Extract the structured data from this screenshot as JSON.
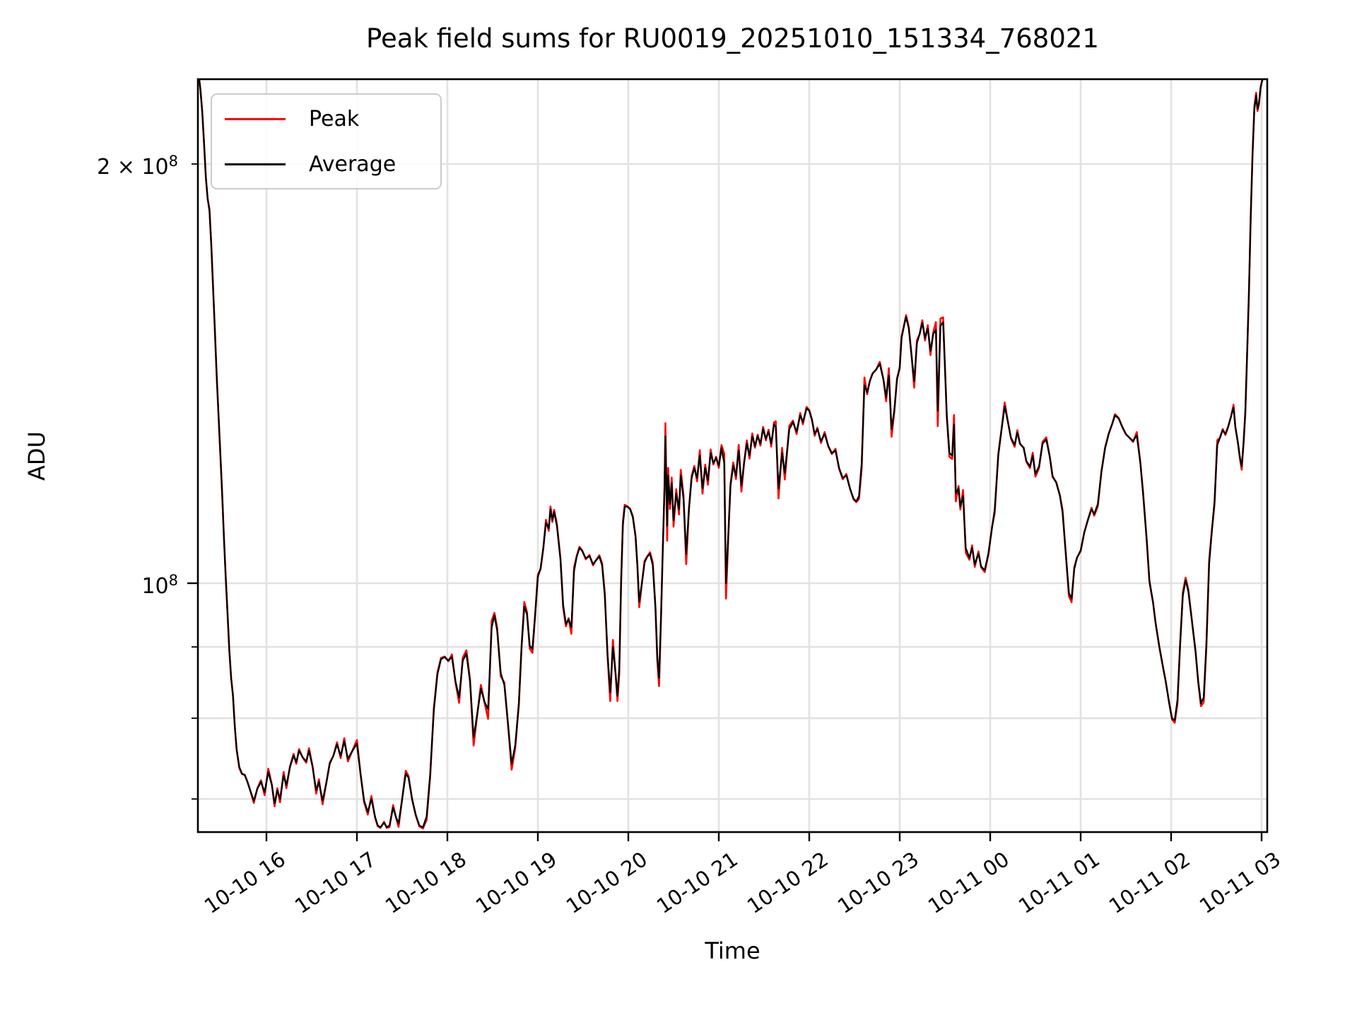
{
  "figure": {
    "kind": "matplotlib line plot",
    "background": "#ffffff"
  },
  "chart_data": {
    "type": "line",
    "title": "Peak field sums for RU0019_20251010_151334_768021",
    "xlabel": "Time",
    "ylabel": "ADU",
    "y_scale": "log",
    "grid": true,
    "colors": {
      "peak": "#ff0000",
      "average": "#000000",
      "grid": "#e2e2e2",
      "spine": "#000000"
    },
    "x_axis": {
      "unit": "hours (24h+ = next day 10-11)",
      "range_hours": [
        15.23,
        27.06
      ],
      "ticks": [
        {
          "t": 16,
          "label": "10-10 16"
        },
        {
          "t": 17,
          "label": "10-10 17"
        },
        {
          "t": 18,
          "label": "10-10 18"
        },
        {
          "t": 19,
          "label": "10-10 19"
        },
        {
          "t": 20,
          "label": "10-10 20"
        },
        {
          "t": 21,
          "label": "10-10 21"
        },
        {
          "t": 22,
          "label": "10-10 22"
        },
        {
          "t": 23,
          "label": "10-10 23"
        },
        {
          "t": 24,
          "label": "10-11 00"
        },
        {
          "t": 25,
          "label": "10-11 01"
        },
        {
          "t": 26,
          "label": "10-11 02"
        },
        {
          "t": 27,
          "label": "10-11 03"
        }
      ]
    },
    "y_axis": {
      "unit": "ADU",
      "range": [
        66300000,
        230400000
      ],
      "major_ticks": [
        {
          "value_e7": 10,
          "mantissa": "10",
          "exp": "8"
        }
      ],
      "labeled_minor_ticks": [
        {
          "value_e7": 20,
          "mantissa": "2 × 10",
          "exp": "8"
        }
      ],
      "minor_ticks_e7": [
        7,
        8,
        9
      ]
    },
    "legend": {
      "entries": [
        {
          "label": "Peak",
          "color": "#ff0000"
        },
        {
          "label": "Average",
          "color": "#000000"
        }
      ]
    },
    "series_note": "Peak (red) nearly coincides with Average (black); red fringes appear only at sharp spikes/dips.",
    "values_scale": 10000000,
    "average_points_e7": [
      [
        15.25,
        23.2
      ],
      [
        15.27,
        22.6
      ],
      [
        15.29,
        21.8
      ],
      [
        15.31,
        20.7
      ],
      [
        15.33,
        19.6
      ],
      [
        15.35,
        18.9
      ],
      [
        15.37,
        18.5
      ],
      [
        15.39,
        17.5
      ],
      [
        15.41,
        16.3
      ],
      [
        15.43,
        15.2
      ],
      [
        15.45,
        14.1
      ],
      [
        15.47,
        13.2
      ],
      [
        15.49,
        12.4
      ],
      [
        15.51,
        11.6
      ],
      [
        15.53,
        10.8
      ],
      [
        15.55,
        10.1
      ],
      [
        15.57,
        9.5
      ],
      [
        15.59,
        8.95
      ],
      [
        15.61,
        8.55
      ],
      [
        15.63,
        8.3
      ],
      [
        15.65,
        7.9
      ],
      [
        15.67,
        7.6
      ],
      [
        15.7,
        7.38
      ],
      [
        15.73,
        7.3
      ],
      [
        15.76,
        7.28
      ],
      [
        15.79,
        7.2
      ],
      [
        15.82,
        7.1
      ],
      [
        15.86,
        6.98
      ],
      [
        15.9,
        7.12
      ],
      [
        15.94,
        7.2
      ],
      [
        15.98,
        7.08
      ],
      [
        16.02,
        7.32
      ],
      [
        16.06,
        7.16
      ],
      [
        16.09,
        6.95
      ],
      [
        16.12,
        7.1
      ],
      [
        16.15,
        7.0
      ],
      [
        16.19,
        7.28
      ],
      [
        16.22,
        7.16
      ],
      [
        16.26,
        7.38
      ],
      [
        16.3,
        7.52
      ],
      [
        16.33,
        7.44
      ],
      [
        16.36,
        7.58
      ],
      [
        16.4,
        7.5
      ],
      [
        16.44,
        7.45
      ],
      [
        16.47,
        7.58
      ],
      [
        16.51,
        7.38
      ],
      [
        16.55,
        7.1
      ],
      [
        16.58,
        7.2
      ],
      [
        16.62,
        6.98
      ],
      [
        16.66,
        7.18
      ],
      [
        16.7,
        7.42
      ],
      [
        16.74,
        7.52
      ],
      [
        16.78,
        7.66
      ],
      [
        16.82,
        7.52
      ],
      [
        16.86,
        7.7
      ],
      [
        16.9,
        7.48
      ],
      [
        16.95,
        7.58
      ],
      [
        17.0,
        7.67
      ],
      [
        17.04,
        7.3
      ],
      [
        17.08,
        6.98
      ],
      [
        17.12,
        6.85
      ],
      [
        17.16,
        7.0
      ],
      [
        17.2,
        6.8
      ],
      [
        17.23,
        6.7
      ],
      [
        17.26,
        6.68
      ],
      [
        17.3,
        6.73
      ],
      [
        17.33,
        6.68
      ],
      [
        17.36,
        6.7
      ],
      [
        17.4,
        6.9
      ],
      [
        17.43,
        6.8
      ],
      [
        17.46,
        6.72
      ],
      [
        17.5,
        7.0
      ],
      [
        17.54,
        7.3
      ],
      [
        17.57,
        7.25
      ],
      [
        17.61,
        7.0
      ],
      [
        17.65,
        6.82
      ],
      [
        17.69,
        6.7
      ],
      [
        17.73,
        6.68
      ],
      [
        17.77,
        6.8
      ],
      [
        17.81,
        7.3
      ],
      [
        17.85,
        8.1
      ],
      [
        17.89,
        8.6
      ],
      [
        17.93,
        8.82
      ],
      [
        17.97,
        8.85
      ],
      [
        18.01,
        8.8
      ],
      [
        18.05,
        8.85
      ],
      [
        18.09,
        8.5
      ],
      [
        18.13,
        8.28
      ],
      [
        18.17,
        8.8
      ],
      [
        18.21,
        8.9
      ],
      [
        18.25,
        8.5
      ],
      [
        18.29,
        7.75
      ],
      [
        18.33,
        8.05
      ],
      [
        18.37,
        8.4
      ],
      [
        18.41,
        8.22
      ],
      [
        18.45,
        8.12
      ],
      [
        18.49,
        9.3
      ],
      [
        18.52,
        9.48
      ],
      [
        18.55,
        9.25
      ],
      [
        18.59,
        8.62
      ],
      [
        18.63,
        8.45
      ],
      [
        18.67,
        7.92
      ],
      [
        18.71,
        7.42
      ],
      [
        18.75,
        7.65
      ],
      [
        18.79,
        8.2
      ],
      [
        18.82,
        9.0
      ],
      [
        18.85,
        9.62
      ],
      [
        18.88,
        9.5
      ],
      [
        18.91,
        9.02
      ],
      [
        18.94,
        8.97
      ],
      [
        18.97,
        9.5
      ],
      [
        19.0,
        10.1
      ],
      [
        19.03,
        10.25
      ],
      [
        19.06,
        10.6
      ],
      [
        19.09,
        11.05
      ],
      [
        19.12,
        10.95
      ],
      [
        19.14,
        11.3
      ],
      [
        19.16,
        11.1
      ],
      [
        19.18,
        11.25
      ],
      [
        19.21,
        11.0
      ],
      [
        19.25,
        10.4
      ],
      [
        19.28,
        9.65
      ],
      [
        19.31,
        9.35
      ],
      [
        19.34,
        9.42
      ],
      [
        19.37,
        9.3
      ],
      [
        19.4,
        10.2
      ],
      [
        19.43,
        10.45
      ],
      [
        19.46,
        10.6
      ],
      [
        19.49,
        10.55
      ],
      [
        19.53,
        10.42
      ],
      [
        19.57,
        10.46
      ],
      [
        19.61,
        10.32
      ],
      [
        19.64,
        10.38
      ],
      [
        19.68,
        10.45
      ],
      [
        19.71,
        10.3
      ],
      [
        19.74,
        9.8
      ],
      [
        19.77,
        8.9
      ],
      [
        19.8,
        8.35
      ],
      [
        19.83,
        9.0
      ],
      [
        19.86,
        8.6
      ],
      [
        19.88,
        8.3
      ],
      [
        19.9,
        8.7
      ],
      [
        19.92,
        10.0
      ],
      [
        19.94,
        11.0
      ],
      [
        19.96,
        11.35
      ],
      [
        19.99,
        11.35
      ],
      [
        20.02,
        11.3
      ],
      [
        20.05,
        11.15
      ],
      [
        20.08,
        10.8
      ],
      [
        20.1,
        10.3
      ],
      [
        20.12,
        9.7
      ],
      [
        20.15,
        10.0
      ],
      [
        20.18,
        10.35
      ],
      [
        20.21,
        10.45
      ],
      [
        20.24,
        10.5
      ],
      [
        20.27,
        10.3
      ],
      [
        20.3,
        9.6
      ],
      [
        20.32,
        8.85
      ],
      [
        20.34,
        8.55
      ],
      [
        20.36,
        9.4
      ],
      [
        20.38,
        10.5
      ],
      [
        20.4,
        11.7
      ],
      [
        20.41,
        12.75
      ],
      [
        20.43,
        11.0
      ],
      [
        20.44,
        11.95
      ],
      [
        20.46,
        11.4
      ],
      [
        20.48,
        11.8
      ],
      [
        20.5,
        11.1
      ],
      [
        20.53,
        11.6
      ],
      [
        20.56,
        11.3
      ],
      [
        20.58,
        11.95
      ],
      [
        20.61,
        11.5
      ],
      [
        20.64,
        10.5
      ],
      [
        20.67,
        11.3
      ],
      [
        20.7,
        11.9
      ],
      [
        20.73,
        12.1
      ],
      [
        20.76,
        11.9
      ],
      [
        20.79,
        12.35
      ],
      [
        20.82,
        11.7
      ],
      [
        20.85,
        12.1
      ],
      [
        20.88,
        11.85
      ],
      [
        20.91,
        12.4
      ],
      [
        20.94,
        12.2
      ],
      [
        20.97,
        12.3
      ],
      [
        21.0,
        12.15
      ],
      [
        21.03,
        12.5
      ],
      [
        21.06,
        12.2
      ],
      [
        21.08,
        10.0
      ],
      [
        21.11,
        11.0
      ],
      [
        21.13,
        11.75
      ],
      [
        21.16,
        12.15
      ],
      [
        21.19,
        11.95
      ],
      [
        21.22,
        12.45
      ],
      [
        21.25,
        11.75
      ],
      [
        21.28,
        12.2
      ],
      [
        21.31,
        12.6
      ],
      [
        21.34,
        12.35
      ],
      [
        21.37,
        12.75
      ],
      [
        21.4,
        12.55
      ],
      [
        21.43,
        12.75
      ],
      [
        21.46,
        12.6
      ],
      [
        21.49,
        12.9
      ],
      [
        21.52,
        12.7
      ],
      [
        21.55,
        12.85
      ],
      [
        21.58,
        12.6
      ],
      [
        21.61,
        13.0
      ],
      [
        21.63,
        12.95
      ],
      [
        21.66,
        11.7
      ],
      [
        21.7,
        12.4
      ],
      [
        21.73,
        12.0
      ],
      [
        21.78,
        12.9
      ],
      [
        21.82,
        13.05
      ],
      [
        21.86,
        12.85
      ],
      [
        21.9,
        13.2
      ],
      [
        21.93,
        13.05
      ],
      [
        21.97,
        13.35
      ],
      [
        22.0,
        13.3
      ],
      [
        22.03,
        13.1
      ],
      [
        22.06,
        12.8
      ],
      [
        22.09,
        12.9
      ],
      [
        22.13,
        12.65
      ],
      [
        22.17,
        12.8
      ],
      [
        22.21,
        12.55
      ],
      [
        22.25,
        12.4
      ],
      [
        22.29,
        12.45
      ],
      [
        22.33,
        12.1
      ],
      [
        22.37,
        11.9
      ],
      [
        22.41,
        11.95
      ],
      [
        22.45,
        11.7
      ],
      [
        22.49,
        11.5
      ],
      [
        22.52,
        11.45
      ],
      [
        22.55,
        11.55
      ],
      [
        22.58,
        12.2
      ],
      [
        22.61,
        13.87
      ],
      [
        22.64,
        13.71
      ],
      [
        22.67,
        13.97
      ],
      [
        22.7,
        14.14
      ],
      [
        22.74,
        14.24
      ],
      [
        22.78,
        14.37
      ],
      [
        22.82,
        14.0
      ],
      [
        22.85,
        13.6
      ],
      [
        22.88,
        14.1
      ],
      [
        22.91,
        12.9
      ],
      [
        22.94,
        13.3
      ],
      [
        22.97,
        14.0
      ],
      [
        23.0,
        14.3
      ],
      [
        23.02,
        15.0
      ],
      [
        23.05,
        15.33
      ],
      [
        23.07,
        15.53
      ],
      [
        23.1,
        15.24
      ],
      [
        23.13,
        14.6
      ],
      [
        23.16,
        13.97
      ],
      [
        23.19,
        14.87
      ],
      [
        23.22,
        15.1
      ],
      [
        23.25,
        15.38
      ],
      [
        23.28,
        15.0
      ],
      [
        23.31,
        15.24
      ],
      [
        23.34,
        14.68
      ],
      [
        23.37,
        15.1
      ],
      [
        23.4,
        15.2
      ],
      [
        23.42,
        13.3
      ],
      [
        23.45,
        15.3
      ],
      [
        23.48,
        15.4
      ],
      [
        23.5,
        14.3
      ],
      [
        23.52,
        13.2
      ],
      [
        23.55,
        12.4
      ],
      [
        23.58,
        12.35
      ],
      [
        23.6,
        13.0
      ],
      [
        23.62,
        11.6
      ],
      [
        23.65,
        11.7
      ],
      [
        23.67,
        11.35
      ],
      [
        23.7,
        11.55
      ],
      [
        23.73,
        10.6
      ],
      [
        23.77,
        10.43
      ],
      [
        23.8,
        10.6
      ],
      [
        23.83,
        10.32
      ],
      [
        23.87,
        10.5
      ],
      [
        23.9,
        10.28
      ],
      [
        23.94,
        10.22
      ],
      [
        23.98,
        10.5
      ],
      [
        24.02,
        10.96
      ],
      [
        24.05,
        11.3
      ],
      [
        24.09,
        12.35
      ],
      [
        24.13,
        12.95
      ],
      [
        24.16,
        13.4
      ],
      [
        24.2,
        13.02
      ],
      [
        24.23,
        12.72
      ],
      [
        24.27,
        12.57
      ],
      [
        24.3,
        12.83
      ],
      [
        24.33,
        12.6
      ],
      [
        24.37,
        12.5
      ],
      [
        24.4,
        12.24
      ],
      [
        24.44,
        12.13
      ],
      [
        24.47,
        12.35
      ],
      [
        24.5,
        11.98
      ],
      [
        24.54,
        12.13
      ],
      [
        24.58,
        12.6
      ],
      [
        24.62,
        12.68
      ],
      [
        24.66,
        12.31
      ],
      [
        24.69,
        11.94
      ],
      [
        24.73,
        11.81
      ],
      [
        24.77,
        11.56
      ],
      [
        24.8,
        11.24
      ],
      [
        24.84,
        10.43
      ],
      [
        24.87,
        9.84
      ],
      [
        24.9,
        9.75
      ],
      [
        24.93,
        10.24
      ],
      [
        24.96,
        10.43
      ],
      [
        25.0,
        10.56
      ],
      [
        25.04,
        10.87
      ],
      [
        25.08,
        11.1
      ],
      [
        25.12,
        11.3
      ],
      [
        25.15,
        11.21
      ],
      [
        25.19,
        11.4
      ],
      [
        25.23,
        12.02
      ],
      [
        25.27,
        12.5
      ],
      [
        25.31,
        12.8
      ],
      [
        25.35,
        13.02
      ],
      [
        25.38,
        13.2
      ],
      [
        25.42,
        13.13
      ],
      [
        25.46,
        12.95
      ],
      [
        25.5,
        12.8
      ],
      [
        25.54,
        12.72
      ],
      [
        25.58,
        12.65
      ],
      [
        25.62,
        12.77
      ],
      [
        25.66,
        12.2
      ],
      [
        25.69,
        11.6
      ],
      [
        25.73,
        10.76
      ],
      [
        25.76,
        10.05
      ],
      [
        25.8,
        9.69
      ],
      [
        25.83,
        9.35
      ],
      [
        25.87,
        9.0
      ],
      [
        25.91,
        8.71
      ],
      [
        25.94,
        8.5
      ],
      [
        25.98,
        8.2
      ],
      [
        26.01,
        8.0
      ],
      [
        26.04,
        7.97
      ],
      [
        26.07,
        8.25
      ],
      [
        26.1,
        9.05
      ],
      [
        26.13,
        9.8
      ],
      [
        26.16,
        10.05
      ],
      [
        26.19,
        9.87
      ],
      [
        26.23,
        9.4
      ],
      [
        26.27,
        8.93
      ],
      [
        26.3,
        8.5
      ],
      [
        26.33,
        8.2
      ],
      [
        26.36,
        8.28
      ],
      [
        26.39,
        9.05
      ],
      [
        26.42,
        10.32
      ],
      [
        26.45,
        10.9
      ],
      [
        26.48,
        11.45
      ],
      [
        26.51,
        12.57
      ],
      [
        26.54,
        12.72
      ],
      [
        26.57,
        12.88
      ],
      [
        26.6,
        12.8
      ],
      [
        26.63,
        12.95
      ],
      [
        26.66,
        13.16
      ],
      [
        26.69,
        13.37
      ],
      [
        26.71,
        12.95
      ],
      [
        26.74,
        12.6
      ],
      [
        26.76,
        12.31
      ],
      [
        26.78,
        12.13
      ],
      [
        26.8,
        12.6
      ],
      [
        26.82,
        13.3
      ],
      [
        26.84,
        14.6
      ],
      [
        26.86,
        16.2
      ],
      [
        26.88,
        18.3
      ],
      [
        26.9,
        20.3
      ],
      [
        26.92,
        21.9
      ],
      [
        26.94,
        22.4
      ],
      [
        26.955,
        21.9
      ],
      [
        26.97,
        22.1
      ],
      [
        26.99,
        22.7
      ],
      [
        27.01,
        23.0
      ],
      [
        27.03,
        23.08
      ],
      [
        27.05,
        23.1
      ]
    ]
  }
}
